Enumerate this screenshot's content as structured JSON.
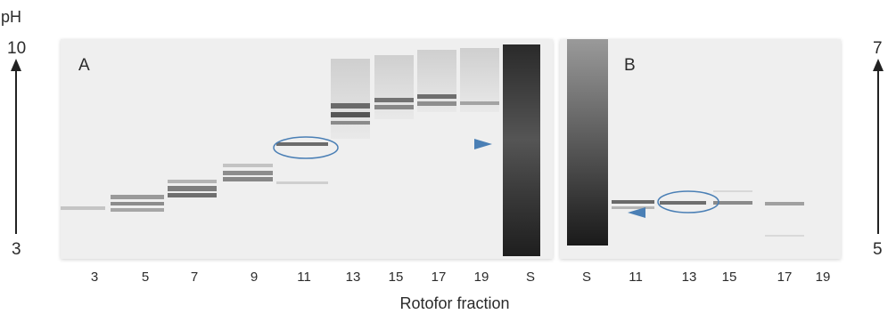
{
  "ph_axis_label": "pH",
  "left_scale": {
    "top": "10",
    "bottom": "3"
  },
  "right_scale": {
    "top": "7",
    "bottom": "5"
  },
  "panel_a": {
    "label": "A",
    "lanes": [
      "3",
      "5",
      "7",
      "9",
      "11",
      "13",
      "15",
      "17",
      "19",
      "S"
    ]
  },
  "panel_b": {
    "label": "B",
    "lanes": [
      "S",
      "11",
      "13",
      "15",
      "17",
      "19"
    ]
  },
  "x_axis_label": "Rotofor fraction",
  "annotation_color": "#4a7fb5"
}
